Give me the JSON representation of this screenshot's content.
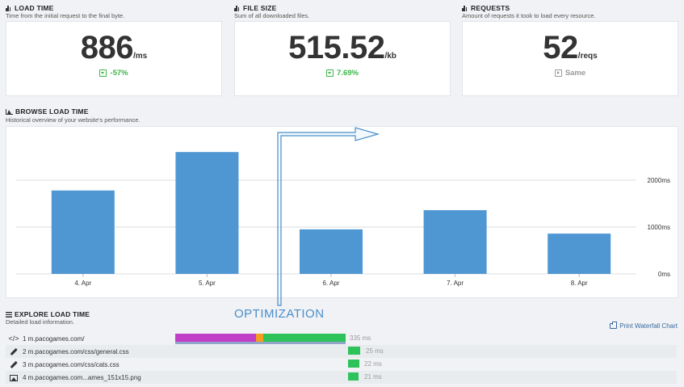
{
  "load_time": {
    "title": "LOAD TIME",
    "subtitle": "Time from the initial request to the final byte.",
    "value": "886",
    "unit": "/ms",
    "delta": "-57%",
    "delta_color": "#3cb54a"
  },
  "file_size": {
    "title": "FILE SIZE",
    "subtitle": "Sum of all downloaded files.",
    "value": "515.52",
    "unit": "/kb",
    "delta": "7.69%",
    "delta_color": "#3cb54a"
  },
  "requests": {
    "title": "REQUESTS",
    "subtitle": "Amount of requests it took to load every resource.",
    "value": "52",
    "unit": "/reqs",
    "delta": "Same",
    "delta_color": "#999999"
  },
  "browse": {
    "title": "BROWSE LOAD TIME",
    "subtitle": "Historical overview of your website's performance."
  },
  "chart_data": {
    "type": "bar",
    "categories": [
      "4. Apr",
      "5. Apr",
      "6. Apr",
      "7. Apr",
      "8. Apr"
    ],
    "values": [
      1780,
      2600,
      950,
      1360,
      860
    ],
    "ylim": [
      0,
      3000
    ],
    "yticks": [
      0,
      1000,
      2000
    ],
    "ytick_labels": [
      "0ms",
      "1000ms",
      "2000ms"
    ],
    "bar_color": "#4f97d3",
    "grid": true
  },
  "annotation": {
    "label": "OPTIMIZATION",
    "color": "#4a8ec9"
  },
  "explore": {
    "title": "EXPLORE LOAD TIME",
    "subtitle": "Detailed load information.",
    "print_label": "Print Waterfall Chart"
  },
  "waterfall": [
    {
      "icon": "code-icon",
      "name": "1 m.pacogames.com/",
      "time": "335 ms"
    },
    {
      "icon": "brush-icon",
      "name": "2 m.pacogames.com/css/general.css",
      "time": "25 ms"
    },
    {
      "icon": "brush-icon",
      "name": "3 m.pacogames.com/css/cats.css",
      "time": "22 ms"
    },
    {
      "icon": "image-icon",
      "name": "4 m.pacogames.com...ames_151x15.png",
      "time": "21 ms"
    }
  ]
}
